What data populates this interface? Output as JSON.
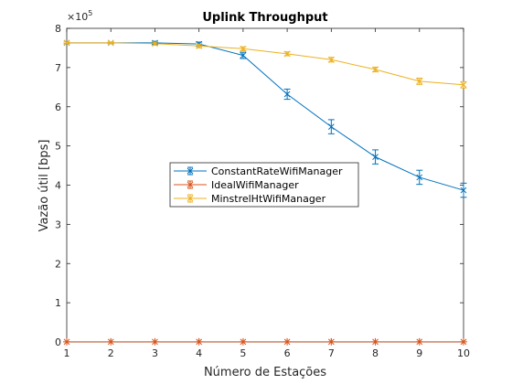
{
  "chart_data": {
    "type": "line",
    "title": "Uplink Throughput",
    "xlabel": "Número de Estações",
    "ylabel": "Vazão útil [bps]",
    "x": [
      1,
      2,
      3,
      4,
      5,
      6,
      7,
      8,
      9,
      10
    ],
    "xlim": [
      1,
      10
    ],
    "ylim": [
      0,
      8
    ],
    "y_ticks": [
      0,
      1,
      2,
      3,
      4,
      5,
      6,
      7,
      8
    ],
    "y_exponent_base": "×10",
    "y_exponent_power": "5",
    "grid": false,
    "legend_position": "center",
    "series": [
      {
        "name": "ConstantRateWifiManager",
        "color": "#0072BD",
        "values": [
          7.63,
          7.63,
          7.63,
          7.6,
          7.31,
          6.32,
          5.49,
          4.72,
          4.2,
          3.87
        ],
        "errors": [
          0.02,
          0.02,
          0.04,
          0.05,
          0.08,
          0.13,
          0.18,
          0.18,
          0.18,
          0.18
        ]
      },
      {
        "name": "IdealWifiManager",
        "color": "#D95319",
        "values": [
          0.003,
          0.003,
          0.003,
          0.003,
          0.003,
          0.003,
          0.003,
          0.003,
          0.003,
          0.003
        ],
        "errors": [
          0,
          0,
          0,
          0,
          0,
          0,
          0,
          0,
          0,
          0
        ]
      },
      {
        "name": "MinstrelHtWifiManager",
        "color": "#EDB120",
        "values": [
          7.63,
          7.63,
          7.61,
          7.55,
          7.48,
          7.35,
          7.2,
          6.95,
          6.65,
          6.56
        ],
        "errors": [
          0.02,
          0.02,
          0.04,
          0.05,
          0.05,
          0.05,
          0.06,
          0.06,
          0.08,
          0.08
        ]
      }
    ]
  }
}
